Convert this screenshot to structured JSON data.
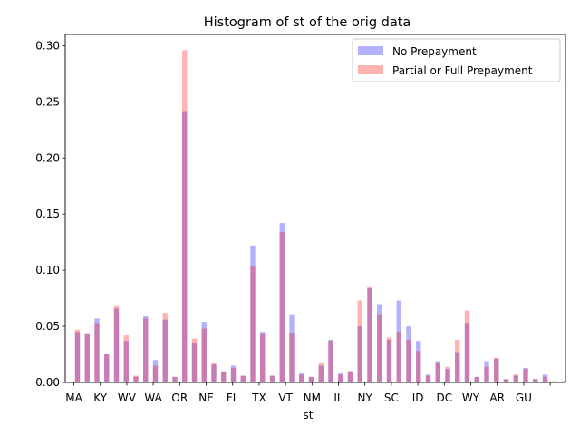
{
  "chart_data": {
    "type": "bar",
    "title": "Histogram of st of the orig data",
    "xlabel": "st",
    "ylabel": "",
    "ylim": [
      0,
      0.31
    ],
    "yticks": [
      "0.00",
      "0.05",
      "0.10",
      "0.15",
      "0.20",
      "0.25",
      "0.30"
    ],
    "ytick_values": [
      0,
      0.05,
      0.1,
      0.15,
      0.2,
      0.25,
      0.3
    ],
    "xtick_labels": [
      "MA",
      "KY",
      "WV",
      "WA",
      "OR",
      "NE",
      "FL",
      "TX",
      "VT",
      "NM",
      "IL",
      "NY",
      "SC",
      "ID",
      "DC",
      "WY",
      "AR",
      "GU",
      ""
    ],
    "legend_position": "top-right",
    "grid": false,
    "series": [
      {
        "name": "No Prepayment",
        "color": "#0000ff",
        "values": [
          0.045,
          0.043,
          0.057,
          0.025,
          0.066,
          0.037,
          0.005,
          0.059,
          0.02,
          0.056,
          0.005,
          0.241,
          0.035,
          0.054,
          0.016,
          0.01,
          0.015,
          0.006,
          0.122,
          0.045,
          0.006,
          0.142,
          0.06,
          0.008,
          0.005,
          0.015,
          0.038,
          0.008,
          0.01,
          0.05,
          0.084,
          0.069,
          0.038,
          0.073,
          0.05,
          0.037,
          0.007,
          0.019,
          0.012,
          0.027,
          0.053,
          0.005,
          0.019,
          0.021,
          0.003,
          0.006,
          0.013,
          0.003,
          0.007,
          0.001,
          0.001
        ]
      },
      {
        "name": "Partial or Full Prepayment",
        "color": "#ff0000",
        "values": [
          0.047,
          0.043,
          0.053,
          0.025,
          0.068,
          0.042,
          0.006,
          0.057,
          0.015,
          0.062,
          0.005,
          0.296,
          0.039,
          0.048,
          0.017,
          0.009,
          0.013,
          0.006,
          0.104,
          0.043,
          0.006,
          0.134,
          0.044,
          0.007,
          0.005,
          0.017,
          0.037,
          0.007,
          0.01,
          0.073,
          0.085,
          0.06,
          0.04,
          0.045,
          0.038,
          0.028,
          0.006,
          0.017,
          0.014,
          0.038,
          0.064,
          0.005,
          0.014,
          0.022,
          0.003,
          0.007,
          0.012,
          0.003,
          0.005,
          0.001,
          0.001
        ]
      }
    ]
  }
}
